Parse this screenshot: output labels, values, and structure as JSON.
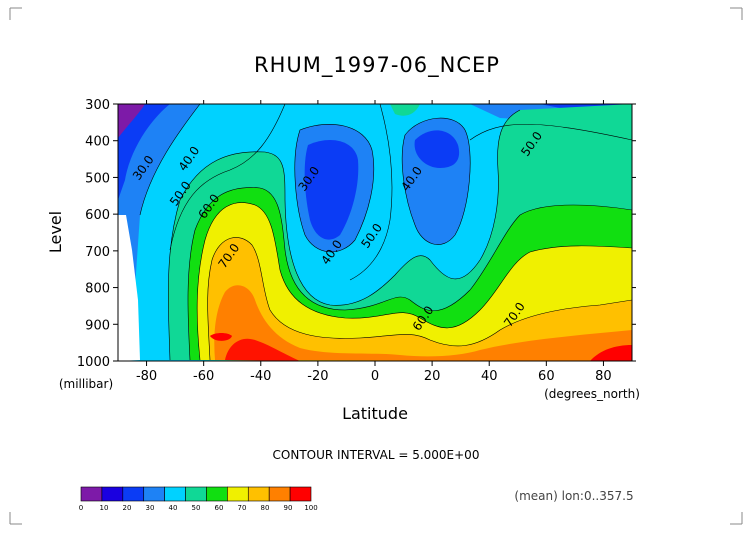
{
  "chart_data": {
    "type": "contour",
    "title": "RHUM_1997-06_NCEP",
    "xlabel": "Latitude",
    "x_units": "(degrees_north)",
    "ylabel": "Level",
    "y_units": "(millibar)",
    "xlim": [
      -90,
      90
    ],
    "ylim": [
      1000,
      300
    ],
    "x_ticks": [
      -80,
      -60,
      -40,
      -20,
      0,
      20,
      40,
      60,
      80
    ],
    "x_tick_labels": [
      "-80",
      "-60",
      "-40",
      "-20",
      "0",
      "20",
      "40",
      "60",
      "80"
    ],
    "y_ticks": [
      300,
      400,
      500,
      600,
      700,
      800,
      900,
      1000
    ],
    "y_tick_labels": [
      "300",
      "400",
      "500",
      "600",
      "700",
      "800",
      "900",
      "1000"
    ],
    "contour_interval_text": "CONTOUR INTERVAL = 5.000E+00",
    "annotation_text": "(mean) lon:0..357.5",
    "colorbar": {
      "levels": [
        0,
        10,
        20,
        30,
        40,
        50,
        60,
        70,
        80,
        90,
        100
      ],
      "labels": [
        "0",
        "10",
        "20",
        "30",
        "40",
        "50",
        "60",
        "70",
        "80",
        "90",
        "100"
      ],
      "colors": [
        "#7d1aa8",
        "#1a00e0",
        "#0b3cf5",
        "#1e82f5",
        "#00d2ff",
        "#10d896",
        "#11df11",
        "#f0f000",
        "#ffc000",
        "#ff8000",
        "#ff0000"
      ]
    },
    "contour_labels": [
      {
        "text": "30.0",
        "lat": -80,
        "lev": 480
      },
      {
        "text": "40.0",
        "lat": -64,
        "lev": 455
      },
      {
        "text": "50.0",
        "lat": -67,
        "lev": 550
      },
      {
        "text": "60.0",
        "lat": -57,
        "lev": 585
      },
      {
        "text": "70.0",
        "lat": -50,
        "lev": 720
      },
      {
        "text": "30.0",
        "lat": -22,
        "lev": 510
      },
      {
        "text": "40.0",
        "lat": -14,
        "lev": 710
      },
      {
        "text": "50.0",
        "lat": 0,
        "lev": 665
      },
      {
        "text": "40.0",
        "lat": 14,
        "lev": 510
      },
      {
        "text": "60.0",
        "lat": 18,
        "lev": 890
      },
      {
        "text": "70.0",
        "lat": 50,
        "lev": 880
      },
      {
        "text": "50.0",
        "lat": 56,
        "lev": 415
      }
    ],
    "grid": false
  }
}
